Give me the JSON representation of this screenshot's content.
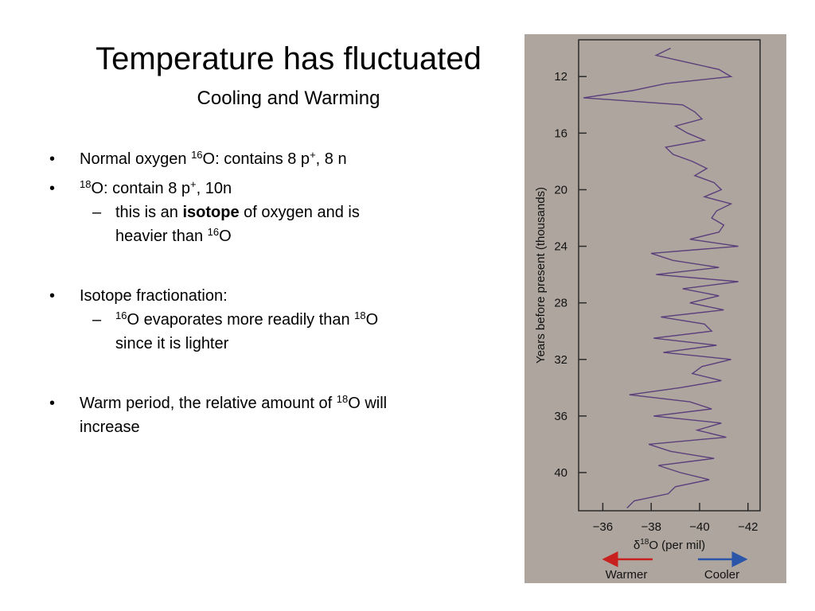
{
  "slide": {
    "title": "Temperature has fluctuated",
    "subtitle": "Cooling and Warming",
    "items": [
      {
        "lines": [
          [
            {
              "t": "Normal oxygen "
            },
            {
              "t": "16",
              "sup": true
            },
            {
              "t": "O: contains 8 p"
            },
            {
              "t": "+",
              "sup": true
            },
            {
              "t": ", 8 n"
            }
          ]
        ]
      },
      {
        "lines": [
          [
            {
              "t": "18",
              "sup": true
            },
            {
              "t": "O: contain 8 p"
            },
            {
              "t": "+",
              "sup": true
            },
            {
              "t": ", 10n"
            }
          ]
        ],
        "sub": [
          {
            "lines": [
              [
                {
                  "t": "this is an "
                },
                {
                  "t": "isotope",
                  "bold": true
                },
                {
                  "t": " of oxygen and is"
                }
              ],
              [
                {
                  "t": "heavier than "
                },
                {
                  "t": "16",
                  "sup": true
                },
                {
                  "t": "O"
                }
              ]
            ]
          }
        ]
      },
      {
        "lines": [
          [
            {
              "t": "Isotope fractionation:"
            }
          ]
        ],
        "sub": [
          {
            "lines": [
              [
                {
                  "t": "16",
                  "sup": true
                },
                {
                  "t": "O evaporates more readily than "
                },
                {
                  "t": "18",
                  "sup": true
                },
                {
                  "t": "O"
                }
              ],
              [
                {
                  "t": "since it is lighter"
                }
              ]
            ]
          }
        ]
      },
      {
        "lines": [
          [
            {
              "t": "Warm period, the relative amount of "
            },
            {
              "t": "18",
              "sup": true
            },
            {
              "t": "O will"
            }
          ],
          [
            {
              "t": "increase"
            }
          ]
        ]
      }
    ]
  },
  "figure": {
    "type": "line",
    "ylabel": "Years before present (thousands)",
    "xlabel": [
      {
        "t": "δ"
      },
      {
        "t": "18",
        "sup": true
      },
      {
        "t": "O (per mil)"
      }
    ],
    "legend": {
      "left": "Warmer",
      "right": "Cooler"
    },
    "ylim": [
      9.4,
      42.7
    ],
    "yticks": [
      12,
      16,
      20,
      24,
      28,
      32,
      36,
      40
    ],
    "xlim": [
      -35,
      -42.5
    ],
    "xticks": [
      {
        "value": -36,
        "label": "−36"
      },
      {
        "value": -38,
        "label": "−38"
      },
      {
        "value": -40,
        "label": "−40"
      },
      {
        "value": -42,
        "label": "−42"
      }
    ],
    "series": [
      {
        "color": "#5b3f7c",
        "years": [
          10,
          10.5,
          11,
          11.5,
          12,
          12.5,
          13,
          13.5,
          14,
          14.5,
          15,
          15.5,
          16,
          16.5,
          17,
          17.5,
          18,
          18.5,
          19,
          19.5,
          20,
          20.5,
          21,
          21.5,
          22,
          22.5,
          23,
          23.5,
          24,
          24.5,
          25,
          25.5,
          26,
          26.5,
          27,
          27.5,
          28,
          28.5,
          29,
          29.5,
          30,
          30.5,
          31,
          31.5,
          32,
          32.5,
          33,
          33.5,
          34,
          34.5,
          35,
          35.5,
          36,
          36.5,
          37,
          37.5,
          38,
          38.5,
          39,
          39.5,
          40,
          40.5,
          41,
          41.5,
          42,
          42.5
        ],
        "values": [
          -38.8,
          -38.2,
          -39.5,
          -40.8,
          -41.3,
          -38.6,
          -37.2,
          -35.2,
          -39.3,
          -39.8,
          -40.1,
          -39.0,
          -39.5,
          -40.2,
          -38.6,
          -38.9,
          -39.7,
          -40.3,
          -39.8,
          -40.6,
          -40.9,
          -40.2,
          -41.3,
          -40.7,
          -40.5,
          -41.0,
          -40.8,
          -39.6,
          -41.6,
          -38.0,
          -38.9,
          -40.8,
          -38.2,
          -41.6,
          -39.3,
          -40.8,
          -39.6,
          -41.0,
          -38.4,
          -40.2,
          -40.5,
          -38.1,
          -40.7,
          -38.5,
          -41.3,
          -40.1,
          -39.7,
          -40.9,
          -39.2,
          -37.1,
          -39.6,
          -40.5,
          -38.1,
          -40.9,
          -39.9,
          -41.1,
          -37.9,
          -38.8,
          -40.6,
          -38.3,
          -39.2,
          -40.4,
          -39.0,
          -38.7,
          -37.3,
          -37.0
        ]
      }
    ]
  }
}
